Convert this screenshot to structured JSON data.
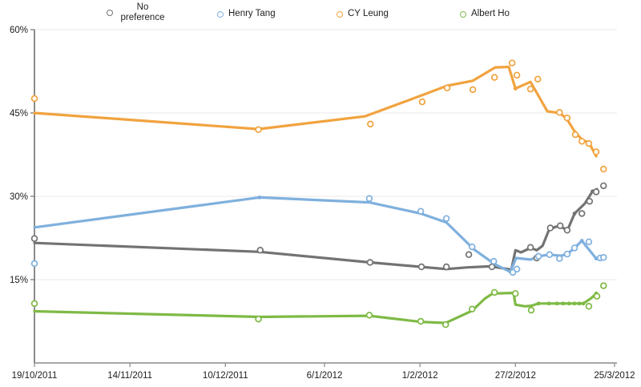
{
  "chart_data": {
    "type": "line",
    "title": "",
    "description": "Opinion polling lines with raw poll scatter points for Hong Kong Chief Executive candidates",
    "x_axis": {
      "start_label": "19/10/2011",
      "end_label": "25/3/2012",
      "range_days": [
        0,
        158
      ],
      "ticks": [
        {
          "day": 0,
          "label": "19/10/2011"
        },
        {
          "day": 26,
          "label": "14/11/2011"
        },
        {
          "day": 52,
          "label": "10/12/2011"
        },
        {
          "day": 79,
          "label": "6/1/2012"
        },
        {
          "day": 105,
          "label": "1/2/2012"
        },
        {
          "day": 131,
          "label": "27/2/2012"
        },
        {
          "day": 158,
          "label": "25/3/2012"
        }
      ]
    },
    "y_axis": {
      "unit": "%",
      "ylim": [
        0,
        60
      ],
      "ticks": [
        {
          "value": 60,
          "label": "60%"
        },
        {
          "value": 45,
          "label": "45%"
        },
        {
          "value": 30,
          "label": "30%"
        },
        {
          "value": 15,
          "label": "15%"
        }
      ],
      "grid": true
    },
    "legend": [
      {
        "label": "No preference",
        "color": "#737373"
      },
      {
        "label": "Henry Tang",
        "color": "#7FB0DE"
      },
      {
        "label": "CY Leung",
        "color": "#F1A33F"
      },
      {
        "label": "Albert Ho",
        "color": "#7FBA45"
      }
    ],
    "series": [
      {
        "name": "No preference",
        "color": "#737373",
        "scatter": [
          [
            0,
            22.4
          ],
          [
            61.5,
            20.3
          ],
          [
            91.4,
            18.1
          ],
          [
            105.4,
            17.3
          ],
          [
            112.2,
            17.3
          ],
          [
            118.3,
            19.5
          ],
          [
            124.6,
            17.3
          ],
          [
            135.1,
            20.8
          ],
          [
            136.8,
            18.9
          ],
          [
            140.5,
            24.3
          ],
          [
            143.2,
            24.7
          ],
          [
            145.1,
            23.9
          ],
          [
            149.1,
            26.9
          ],
          [
            151.2,
            29.1
          ],
          [
            153,
            30.8
          ],
          [
            155,
            31.9
          ]
        ],
        "trend": [
          [
            0,
            21.6
          ],
          [
            61.3,
            20.0
          ],
          [
            91.4,
            18.1
          ],
          [
            105.4,
            17.3
          ],
          [
            112.2,
            16.9
          ],
          [
            118,
            17.2
          ],
          [
            124.2,
            17.4
          ],
          [
            129.9,
            16.8
          ],
          [
            131,
            20.3
          ],
          [
            132.5,
            19.9
          ],
          [
            135.1,
            20.7
          ],
          [
            136.8,
            20.3
          ],
          [
            138.4,
            21.1
          ],
          [
            140.1,
            23.9
          ],
          [
            141.9,
            24.5
          ],
          [
            143.4,
            24.6
          ],
          [
            145.1,
            23.8
          ],
          [
            147.1,
            26.9
          ],
          [
            149.9,
            28.7
          ],
          [
            152,
            30.9
          ],
          [
            153.2,
            31.3
          ]
        ],
        "trend_dots": [
          [
            147.1,
            26.9
          ],
          [
            152,
            30.9
          ]
        ]
      },
      {
        "name": "Henry Tang",
        "color": "#7FB0DE",
        "scatter": [
          [
            0,
            17.9
          ],
          [
            91.2,
            29.6
          ],
          [
            105.2,
            27.3
          ],
          [
            112.2,
            26.0
          ],
          [
            119.2,
            20.9
          ],
          [
            125.1,
            18.3
          ],
          [
            130.3,
            16.3
          ],
          [
            131.4,
            16.9
          ],
          [
            137.3,
            19.2
          ],
          [
            140.3,
            19.5
          ],
          [
            143,
            18.8
          ],
          [
            145.1,
            19.6
          ],
          [
            147.1,
            20.7
          ],
          [
            151,
            21.8
          ],
          [
            154.1,
            18.9
          ],
          [
            155,
            19.0
          ]
        ],
        "trend": [
          [
            0,
            24.4
          ],
          [
            61.3,
            29.8
          ],
          [
            91.2,
            28.9
          ],
          [
            105.2,
            26.9
          ],
          [
            112.2,
            25.3
          ],
          [
            119.8,
            20.4
          ],
          [
            125.3,
            17.8
          ],
          [
            129.6,
            16.4
          ],
          [
            131.2,
            18.9
          ],
          [
            135.1,
            18.6
          ],
          [
            137.3,
            19.2
          ],
          [
            140.1,
            19.5
          ],
          [
            143.4,
            19.3
          ],
          [
            145.1,
            19.6
          ],
          [
            147.1,
            20.7
          ],
          [
            149.1,
            22.0
          ],
          [
            153,
            18.8
          ]
        ],
        "trend_dots": [
          [
            61.3,
            29.8
          ],
          [
            129.6,
            16.4
          ],
          [
            149.1,
            22.0
          ],
          [
            153,
            18.8
          ]
        ]
      },
      {
        "name": "CY Leung",
        "color": "#F1A33F",
        "scatter": [
          [
            0,
            47.6
          ],
          [
            61,
            42.0
          ],
          [
            91.5,
            43.0
          ],
          [
            105.6,
            47.0
          ],
          [
            112.4,
            49.5
          ],
          [
            119.4,
            49.2
          ],
          [
            125.3,
            51.4
          ],
          [
            130.1,
            54.0
          ],
          [
            131.4,
            51.8
          ],
          [
            135.1,
            49.3
          ],
          [
            137.1,
            51.1
          ],
          [
            143,
            45.1
          ],
          [
            145.1,
            44.1
          ],
          [
            147.3,
            41.1
          ],
          [
            149.1,
            39.9
          ],
          [
            151,
            39.5
          ],
          [
            153,
            38.0
          ],
          [
            155,
            34.9
          ]
        ],
        "trend": [
          [
            0,
            45.0
          ],
          [
            61,
            42.1
          ],
          [
            90,
            44.4
          ],
          [
            105.6,
            48.2
          ],
          [
            112.4,
            49.9
          ],
          [
            119.4,
            50.8
          ],
          [
            125.5,
            53.2
          ],
          [
            129.2,
            53.3
          ],
          [
            131,
            49.4
          ],
          [
            135.1,
            50.6
          ],
          [
            139.7,
            45.3
          ],
          [
            143,
            45.0
          ],
          [
            144.9,
            44.0
          ],
          [
            147.3,
            41.5
          ],
          [
            149.3,
            40.1
          ],
          [
            151,
            39.7
          ],
          [
            153,
            37.2
          ]
        ],
        "trend_dots": [
          [
            131,
            49.4
          ],
          [
            143,
            45.0
          ]
        ]
      },
      {
        "name": "Albert Ho",
        "color": "#7FBA45",
        "scatter": [
          [
            0,
            10.7
          ],
          [
            61,
            7.9
          ],
          [
            91.2,
            8.6
          ],
          [
            105.2,
            7.5
          ],
          [
            112,
            6.9
          ],
          [
            119.2,
            9.7
          ],
          [
            125.3,
            12.7
          ],
          [
            131,
            12.5
          ],
          [
            135.3,
            9.5
          ],
          [
            151,
            10.2
          ],
          [
            153.2,
            12.0
          ],
          [
            155,
            13.9
          ]
        ],
        "trend": [
          [
            0,
            9.3
          ],
          [
            61.3,
            8.3
          ],
          [
            91.2,
            8.5
          ],
          [
            105.2,
            7.4
          ],
          [
            112,
            7.2
          ],
          [
            119.2,
            9.4
          ],
          [
            122.7,
            11.6
          ],
          [
            124.8,
            12.5
          ],
          [
            130.5,
            12.6
          ],
          [
            131,
            10.5
          ],
          [
            133.6,
            10.2
          ],
          [
            135.3,
            10.3
          ],
          [
            137.3,
            10.7
          ],
          [
            149.5,
            10.7
          ],
          [
            151.7,
            11.7
          ],
          [
            153,
            12.5
          ]
        ],
        "trend_dots": [
          [
            137.3,
            10.7
          ],
          [
            140.1,
            10.7
          ],
          [
            142.3,
            10.7
          ],
          [
            144,
            10.7
          ],
          [
            145.6,
            10.7
          ],
          [
            147.1,
            10.7
          ],
          [
            148.4,
            10.7
          ],
          [
            149.5,
            10.7
          ],
          [
            153,
            12.5
          ]
        ]
      }
    ]
  }
}
